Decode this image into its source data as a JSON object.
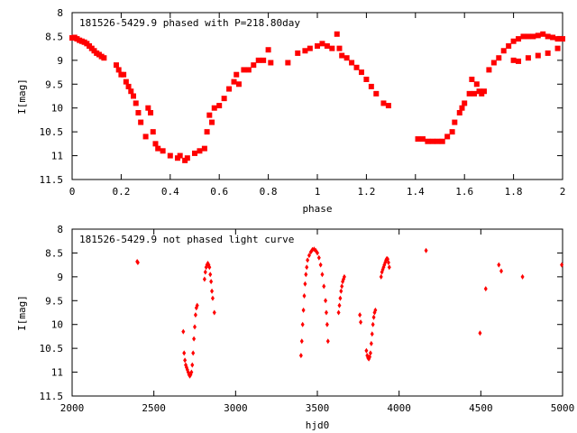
{
  "chart_data": [
    {
      "type": "scatter",
      "title": "181526-5429.9 phased with P=218.80day",
      "xlabel": "phase",
      "ylabel": "I[mag]",
      "xlim": [
        0,
        2
      ],
      "ylim": [
        11.5,
        8
      ],
      "y_inverted": true,
      "grid": false,
      "legend": "none",
      "xticks": [
        "0",
        "0.2",
        "0.4",
        "0.6",
        "0.8",
        "1",
        "1.2",
        "1.4",
        "1.6",
        "1.8",
        "2"
      ],
      "yticks": [
        "8",
        "8.5",
        "9",
        "9.5",
        "10",
        "10.5",
        "11",
        "11.5"
      ],
      "marker_color": "#ff0000",
      "marker": "filled-square",
      "series": [
        {
          "points": [
            [
              0.0,
              8.53
            ],
            [
              0.01,
              8.52
            ],
            [
              0.02,
              8.55
            ],
            [
              0.03,
              8.58
            ],
            [
              0.04,
              8.6
            ],
            [
              0.05,
              8.62
            ],
            [
              0.06,
              8.65
            ],
            [
              0.07,
              8.7
            ],
            [
              0.08,
              8.75
            ],
            [
              0.09,
              8.8
            ],
            [
              0.1,
              8.85
            ],
            [
              0.11,
              8.88
            ],
            [
              0.12,
              8.92
            ],
            [
              0.13,
              8.95
            ],
            [
              0.18,
              9.1
            ],
            [
              0.19,
              9.2
            ],
            [
              0.2,
              9.3
            ],
            [
              0.21,
              9.3
            ],
            [
              0.22,
              9.45
            ],
            [
              0.23,
              9.55
            ],
            [
              0.24,
              9.65
            ],
            [
              0.25,
              9.75
            ],
            [
              0.26,
              9.9
            ],
            [
              0.27,
              10.1
            ],
            [
              0.28,
              10.3
            ],
            [
              0.3,
              10.6
            ],
            [
              0.31,
              10.0
            ],
            [
              0.32,
              10.1
            ],
            [
              0.33,
              10.5
            ],
            [
              0.34,
              10.75
            ],
            [
              0.35,
              10.85
            ],
            [
              0.37,
              10.9
            ],
            [
              0.4,
              11.0
            ],
            [
              0.43,
              11.05
            ],
            [
              0.44,
              11.0
            ],
            [
              0.46,
              11.1
            ],
            [
              0.47,
              11.05
            ],
            [
              0.5,
              10.95
            ],
            [
              0.52,
              10.9
            ],
            [
              0.54,
              10.85
            ],
            [
              0.55,
              10.5
            ],
            [
              0.56,
              10.15
            ],
            [
              0.57,
              10.3
            ],
            [
              0.58,
              10.0
            ],
            [
              0.6,
              9.95
            ],
            [
              0.62,
              9.8
            ],
            [
              0.64,
              9.6
            ],
            [
              0.66,
              9.45
            ],
            [
              0.67,
              9.3
            ],
            [
              0.68,
              9.5
            ],
            [
              0.7,
              9.2
            ],
            [
              0.72,
              9.2
            ],
            [
              0.74,
              9.1
            ],
            [
              0.76,
              9.0
            ],
            [
              0.78,
              9.0
            ],
            [
              0.8,
              8.78
            ],
            [
              0.81,
              9.05
            ],
            [
              0.88,
              9.05
            ],
            [
              0.92,
              8.85
            ],
            [
              0.95,
              8.8
            ],
            [
              0.97,
              8.75
            ],
            [
              1.0,
              8.7
            ],
            [
              1.02,
              8.65
            ],
            [
              1.04,
              8.7
            ],
            [
              1.06,
              8.75
            ],
            [
              1.08,
              8.45
            ],
            [
              1.09,
              8.75
            ],
            [
              1.1,
              8.9
            ],
            [
              1.12,
              8.95
            ],
            [
              1.14,
              9.05
            ],
            [
              1.16,
              9.15
            ],
            [
              1.18,
              9.25
            ],
            [
              1.2,
              9.4
            ],
            [
              1.22,
              9.55
            ],
            [
              1.24,
              9.7
            ],
            [
              1.27,
              9.9
            ],
            [
              1.29,
              9.95
            ],
            [
              1.41,
              10.65
            ],
            [
              1.43,
              10.65
            ],
            [
              1.45,
              10.7
            ],
            [
              1.47,
              10.7
            ],
            [
              1.49,
              10.7
            ],
            [
              1.51,
              10.7
            ],
            [
              1.53,
              10.6
            ],
            [
              1.55,
              10.5
            ],
            [
              1.56,
              10.3
            ],
            [
              1.58,
              10.1
            ],
            [
              1.59,
              10.0
            ],
            [
              1.6,
              9.9
            ],
            [
              1.62,
              9.7
            ],
            [
              1.63,
              9.4
            ],
            [
              1.64,
              9.7
            ],
            [
              1.65,
              9.5
            ],
            [
              1.66,
              9.65
            ],
            [
              1.67,
              9.7
            ],
            [
              1.68,
              9.65
            ],
            [
              1.7,
              9.2
            ],
            [
              1.72,
              9.05
            ],
            [
              1.74,
              8.95
            ],
            [
              1.76,
              8.8
            ],
            [
              1.78,
              8.7
            ],
            [
              1.8,
              8.6
            ],
            [
              1.82,
              8.55
            ],
            [
              1.84,
              8.5
            ],
            [
              1.86,
              8.5
            ],
            [
              1.88,
              8.5
            ],
            [
              1.9,
              8.48
            ],
            [
              1.92,
              8.45
            ],
            [
              1.94,
              8.5
            ],
            [
              1.96,
              8.52
            ],
            [
              1.98,
              8.55
            ],
            [
              2.0,
              8.55
            ],
            [
              1.8,
              9.0
            ],
            [
              1.82,
              9.02
            ],
            [
              1.86,
              8.95
            ],
            [
              1.9,
              8.9
            ],
            [
              1.94,
              8.85
            ],
            [
              1.98,
              8.75
            ]
          ]
        }
      ]
    },
    {
      "type": "scatter",
      "title": "181526-5429.9 not phased light curve",
      "xlabel": "hjd0",
      "ylabel": "I[mag]",
      "xlim": [
        2000,
        5000
      ],
      "ylim": [
        11.5,
        8
      ],
      "y_inverted": true,
      "grid": false,
      "legend": "none",
      "xticks": [
        "2000",
        "2500",
        "3000",
        "3500",
        "4000",
        "4500",
        "5000"
      ],
      "yticks": [
        "8",
        "8.5",
        "9",
        "9.5",
        "10",
        "10.5",
        "11",
        "11.5"
      ],
      "marker_color": "#ff0000",
      "marker": "filled-diamond",
      "series": [
        {
          "points": [
            [
              2398,
              8.68
            ],
            [
              2402,
              8.7
            ],
            [
              2680,
              10.15
            ],
            [
              2685,
              10.6
            ],
            [
              2690,
              10.75
            ],
            [
              2695,
              10.85
            ],
            [
              2700,
              10.9
            ],
            [
              2705,
              10.95
            ],
            [
              2710,
              11.0
            ],
            [
              2715,
              11.05
            ],
            [
              2720,
              11.08
            ],
            [
              2725,
              11.05
            ],
            [
              2730,
              11.0
            ],
            [
              2735,
              10.85
            ],
            [
              2740,
              10.6
            ],
            [
              2745,
              10.3
            ],
            [
              2750,
              10.05
            ],
            [
              2755,
              9.8
            ],
            [
              2760,
              9.65
            ],
            [
              2765,
              9.6
            ],
            [
              2810,
              9.05
            ],
            [
              2815,
              8.9
            ],
            [
              2820,
              8.8
            ],
            [
              2825,
              8.75
            ],
            [
              2830,
              8.72
            ],
            [
              2835,
              8.75
            ],
            [
              2840,
              8.8
            ],
            [
              2845,
              8.95
            ],
            [
              2850,
              9.1
            ],
            [
              2855,
              9.3
            ],
            [
              2860,
              9.45
            ],
            [
              2870,
              9.75
            ],
            [
              3400,
              10.65
            ],
            [
              3405,
              10.35
            ],
            [
              3410,
              10.0
            ],
            [
              3415,
              9.7
            ],
            [
              3420,
              9.4
            ],
            [
              3425,
              9.15
            ],
            [
              3430,
              8.95
            ],
            [
              3435,
              8.8
            ],
            [
              3440,
              8.65
            ],
            [
              3450,
              8.55
            ],
            [
              3460,
              8.48
            ],
            [
              3470,
              8.43
            ],
            [
              3480,
              8.42
            ],
            [
              3490,
              8.45
            ],
            [
              3500,
              8.5
            ],
            [
              3510,
              8.6
            ],
            [
              3520,
              8.75
            ],
            [
              3530,
              8.95
            ],
            [
              3540,
              9.2
            ],
            [
              3550,
              9.5
            ],
            [
              3555,
              9.75
            ],
            [
              3560,
              10.0
            ],
            [
              3565,
              10.35
            ],
            [
              3630,
              9.75
            ],
            [
              3635,
              9.6
            ],
            [
              3640,
              9.45
            ],
            [
              3645,
              9.3
            ],
            [
              3650,
              9.2
            ],
            [
              3655,
              9.1
            ],
            [
              3660,
              9.05
            ],
            [
              3665,
              9.0
            ],
            [
              3760,
              9.8
            ],
            [
              3765,
              9.95
            ],
            [
              3800,
              10.55
            ],
            [
              3805,
              10.65
            ],
            [
              3810,
              10.7
            ],
            [
              3815,
              10.72
            ],
            [
              3820,
              10.68
            ],
            [
              3825,
              10.6
            ],
            [
              3830,
              10.4
            ],
            [
              3835,
              10.2
            ],
            [
              3840,
              10.0
            ],
            [
              3845,
              9.85
            ],
            [
              3850,
              9.75
            ],
            [
              3855,
              9.7
            ],
            [
              3890,
              9.0
            ],
            [
              3895,
              8.9
            ],
            [
              3900,
              8.85
            ],
            [
              3905,
              8.8
            ],
            [
              3910,
              8.75
            ],
            [
              3915,
              8.7
            ],
            [
              3920,
              8.65
            ],
            [
              3925,
              8.62
            ],
            [
              3930,
              8.63
            ],
            [
              3935,
              8.7
            ],
            [
              3940,
              8.8
            ],
            [
              4165,
              8.45
            ],
            [
              4495,
              10.18
            ],
            [
              4530,
              9.25
            ],
            [
              4610,
              8.75
            ],
            [
              4625,
              8.88
            ],
            [
              4755,
              9.0
            ],
            [
              4995,
              8.75
            ]
          ]
        }
      ]
    }
  ]
}
